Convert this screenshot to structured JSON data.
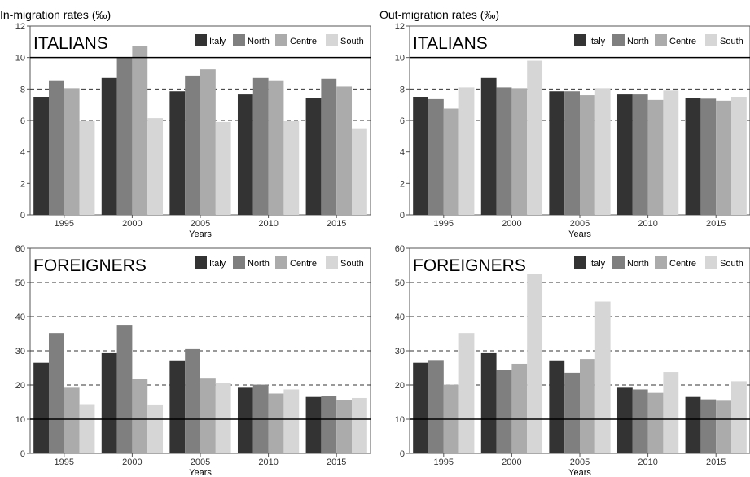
{
  "chart_data": [
    {
      "type": "bar",
      "title": "In-migration rates (‰)",
      "panel_label": "ITALIANS",
      "xlabel": "Years",
      "ylabel": "",
      "categories": [
        "1995",
        "2000",
        "2005",
        "2010",
        "2015"
      ],
      "ylim": [
        0,
        12
      ],
      "yticks": [
        0,
        2,
        4,
        6,
        8,
        10,
        12
      ],
      "dashed_lines": [
        6,
        8
      ],
      "reference_line": 10,
      "legend_position": "top-right",
      "series": [
        {
          "name": "Italy",
          "values": [
            7.5,
            8.7,
            7.85,
            7.65,
            7.4
          ]
        },
        {
          "name": "North",
          "values": [
            8.55,
            10.0,
            8.85,
            8.7,
            8.65
          ]
        },
        {
          "name": "Centre",
          "values": [
            8.05,
            10.75,
            9.25,
            8.55,
            8.15
          ]
        },
        {
          "name": "South",
          "values": [
            5.95,
            6.15,
            5.9,
            5.95,
            5.5
          ]
        }
      ]
    },
    {
      "type": "bar",
      "title": "Out-migration rates (‰)",
      "panel_label": "ITALIANS",
      "xlabel": "Years",
      "ylabel": "",
      "categories": [
        "1995",
        "2000",
        "2005",
        "2010",
        "2015"
      ],
      "ylim": [
        0,
        12
      ],
      "yticks": [
        0,
        2,
        4,
        6,
        8,
        10,
        12
      ],
      "dashed_lines": [
        6,
        8
      ],
      "reference_line": 10,
      "legend_position": "top-right",
      "series": [
        {
          "name": "Italy",
          "values": [
            7.5,
            8.7,
            7.85,
            7.65,
            7.4
          ]
        },
        {
          "name": "North",
          "values": [
            7.35,
            8.1,
            7.85,
            7.65,
            7.38
          ]
        },
        {
          "name": "Centre",
          "values": [
            6.75,
            8.05,
            7.6,
            7.3,
            7.25
          ]
        },
        {
          "name": "South",
          "values": [
            8.1,
            9.8,
            8.05,
            7.9,
            7.5
          ]
        }
      ]
    },
    {
      "type": "bar",
      "title": "",
      "panel_label": "FOREIGNERS",
      "xlabel": "Years",
      "ylabel": "",
      "categories": [
        "1995",
        "2000",
        "2005",
        "2010",
        "2015"
      ],
      "ylim": [
        0,
        60
      ],
      "yticks": [
        0,
        10,
        20,
        30,
        40,
        50,
        60
      ],
      "dashed_lines": [
        20,
        30,
        40,
        50
      ],
      "reference_line": 10,
      "legend_position": "top-right",
      "series": [
        {
          "name": "Italy",
          "values": [
            26.5,
            29.3,
            27.2,
            19.2,
            16.5
          ]
        },
        {
          "name": "North",
          "values": [
            35.2,
            37.6,
            30.5,
            20.1,
            16.8
          ]
        },
        {
          "name": "Centre",
          "values": [
            19.2,
            21.7,
            22.1,
            17.5,
            15.7
          ]
        },
        {
          "name": "South",
          "values": [
            14.4,
            14.3,
            20.5,
            18.7,
            16.2
          ]
        }
      ]
    },
    {
      "type": "bar",
      "title": "",
      "panel_label": "FOREIGNERS",
      "xlabel": "Years",
      "ylabel": "",
      "categories": [
        "1995",
        "2000",
        "2005",
        "2010",
        "2015"
      ],
      "ylim": [
        0,
        60
      ],
      "yticks": [
        0,
        10,
        20,
        30,
        40,
        50,
        60
      ],
      "dashed_lines": [
        20,
        30,
        40,
        50
      ],
      "reference_line": 10,
      "legend_position": "top-right",
      "series": [
        {
          "name": "Italy",
          "values": [
            26.5,
            29.3,
            27.2,
            19.2,
            16.5
          ]
        },
        {
          "name": "North",
          "values": [
            27.3,
            24.5,
            23.6,
            18.7,
            15.8
          ]
        },
        {
          "name": "Centre",
          "values": [
            20.1,
            26.2,
            27.6,
            17.7,
            15.4
          ]
        },
        {
          "name": "South",
          "values": [
            35.2,
            52.4,
            44.4,
            23.8,
            21.1
          ]
        }
      ]
    }
  ],
  "colors": {
    "Italy": "#333333",
    "North": "#7f7f7f",
    "Centre": "#ababab",
    "South": "#d6d6d6"
  }
}
